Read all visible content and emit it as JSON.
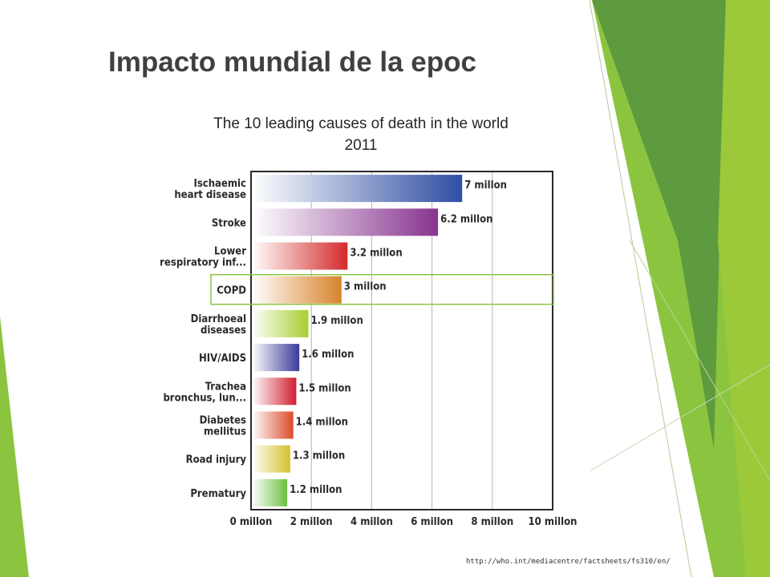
{
  "slide": {
    "title": "Impacto mundial de la epoc",
    "source": "http://who.int/mediacentre/factsheets/fs310/en/"
  },
  "chart_data": {
    "type": "bar",
    "orientation": "horizontal",
    "title": "The 10 leading causes of death in the world",
    "subtitle": "2011",
    "categories": [
      [
        "Ischaemic",
        "heart disease"
      ],
      [
        "Stroke"
      ],
      [
        "Lower",
        "respiratory inf..."
      ],
      [
        "COPD"
      ],
      [
        "Diarrhoeal",
        "diseases"
      ],
      [
        "HIV/AIDS"
      ],
      [
        "Trachea",
        "bronchus, lun..."
      ],
      [
        "Diabetes",
        "mellitus"
      ],
      [
        "Road injury"
      ],
      [
        "Prematury"
      ]
    ],
    "values": [
      7,
      6.2,
      3.2,
      3,
      1.9,
      1.6,
      1.5,
      1.4,
      1.3,
      1.2
    ],
    "value_labels": [
      "7 millon",
      "6.2 millon",
      "3.2 millon",
      "3 millon",
      "1.9 millon",
      "1.6 millon",
      "1.5 millon",
      "1.4 millon",
      "1.3 millon",
      "1.2 millon"
    ],
    "bar_colors": [
      "#2f4ea3",
      "#87348f",
      "#d42a2a",
      "#d8842c",
      "#a6cf2e",
      "#3a3a99",
      "#d21f32",
      "#dc4a2a",
      "#d6c12b",
      "#6cc040"
    ],
    "xlim": [
      0,
      10
    ],
    "x_ticks": [
      0,
      2,
      4,
      6,
      8,
      10
    ],
    "x_tick_labels": [
      "0 millon",
      "2 millon",
      "4 millon",
      "6 millon",
      "8 millon",
      "10 millon"
    ],
    "grid": true,
    "highlight_category": "COPD",
    "highlight_color": "#8bc53f"
  },
  "theme": {
    "accent_green": "#8bc53f",
    "dark_green": "#5a9a3a",
    "light_green": "#c9e39a"
  }
}
